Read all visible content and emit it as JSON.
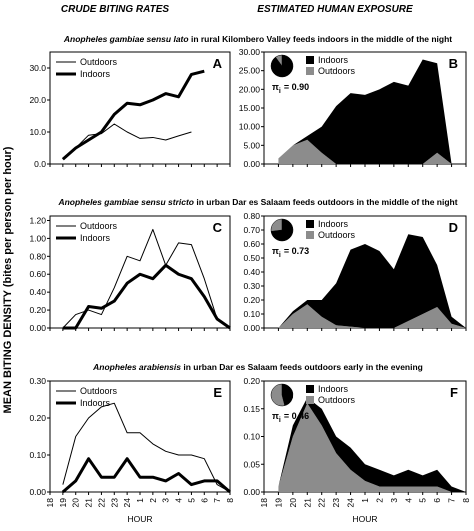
{
  "headers": [
    "CRUDE BITING RATES",
    "ESTIMATED HUMAN EXPOSURE"
  ],
  "y_axis_label": "MEAN BITING DENSITY (bites per person per hour)",
  "row_titles": [
    {
      "species": "Anopheles gambiae sensu lato",
      "rest": "in rural Kilombero Valley feeds indoors in the middle of the night"
    },
    {
      "species": "Anopheles gambiae sensu stricto",
      "rest": "in urban Dar es Salaam feeds outdoors in the middle of the night"
    },
    {
      "species": "Anopheles arabiensis",
      "rest": "in urban Dar es Salaam feeds outdoors early in the evening"
    }
  ],
  "chart_data": [
    {
      "type": "line",
      "letter": "A",
      "ylim": [
        0,
        35
      ],
      "yticks": [
        {
          "value": 0,
          "label": "0.0"
        },
        {
          "value": 10,
          "label": "10.0"
        },
        {
          "value": 20,
          "label": "20.0"
        },
        {
          "value": 30,
          "label": "30.0"
        }
      ],
      "series": [
        {
          "name": "Outdoors",
          "color": "#000000",
          "width": 1,
          "values": [
            null,
            1.5,
            5,
            9,
            9.5,
            12.5,
            10,
            8,
            8.3,
            7.5,
            8.8,
            10,
            null,
            null,
            null
          ]
        },
        {
          "name": "Indoors",
          "color": "#000000",
          "width": 3,
          "values": [
            null,
            1.5,
            5,
            7.5,
            10,
            15.5,
            19,
            18.5,
            20,
            22,
            21,
            28,
            29,
            null,
            null
          ]
        }
      ]
    },
    {
      "type": "stacked_area",
      "letter": "B",
      "ylim": [
        0,
        30
      ],
      "yticks": [
        {
          "value": 0,
          "label": "0.00"
        },
        {
          "value": 5,
          "label": "5.00"
        },
        {
          "value": 10,
          "label": "10.00"
        },
        {
          "value": 15,
          "label": "15.00"
        },
        {
          "value": 20,
          "label": "20.00"
        },
        {
          "value": 25,
          "label": "25.00"
        },
        {
          "value": 30,
          "label": "30.00"
        }
      ],
      "pie": [
        90,
        10
      ],
      "pi_symbol": "π",
      "pi_subscript": "i",
      "pi_text": "= 0.90",
      "series": [
        {
          "name": "Indoors",
          "color": "#000000",
          "values": [
            null,
            0,
            0,
            1,
            7,
            15.5,
            19,
            18.5,
            20,
            22,
            21,
            28,
            24,
            0,
            null
          ]
        },
        {
          "name": "Outdoors",
          "color": "#8c8c8c",
          "values": [
            null,
            1.5,
            5,
            6.5,
            3,
            0,
            0,
            0,
            0,
            0,
            0,
            0,
            3,
            0,
            null
          ]
        }
      ]
    },
    {
      "type": "line",
      "letter": "C",
      "ylim": [
        0,
        1.25
      ],
      "yticks": [
        {
          "value": 0,
          "label": "0.00"
        },
        {
          "value": 0.2,
          "label": "0.20"
        },
        {
          "value": 0.4,
          "label": "0.40"
        },
        {
          "value": 0.6,
          "label": "0.60"
        },
        {
          "value": 0.8,
          "label": "0.80"
        },
        {
          "value": 1,
          "label": "1.00"
        },
        {
          "value": 1.2,
          "label": "1.20"
        }
      ],
      "series": [
        {
          "name": "Outdoors",
          "color": "#000000",
          "width": 1,
          "values": [
            null,
            0,
            0.15,
            0.2,
            0.15,
            0.45,
            0.8,
            0.75,
            1.1,
            0.7,
            0.95,
            0.93,
            0.55,
            0.1,
            0
          ]
        },
        {
          "name": "Indoors",
          "color": "#000000",
          "width": 3,
          "values": [
            null,
            0,
            0,
            0.24,
            0.22,
            0.3,
            0.5,
            0.6,
            0.55,
            0.7,
            0.6,
            0.55,
            0.35,
            0.1,
            0
          ]
        }
      ]
    },
    {
      "type": "stacked_area",
      "letter": "D",
      "ylim": [
        0,
        0.8
      ],
      "yticks": [
        {
          "value": 0,
          "label": "0.00"
        },
        {
          "value": 0.1,
          "label": "0.10"
        },
        {
          "value": 0.2,
          "label": "0.20"
        },
        {
          "value": 0.3,
          "label": "0.30"
        },
        {
          "value": 0.4,
          "label": "0.40"
        },
        {
          "value": 0.5,
          "label": "0.50"
        },
        {
          "value": 0.6,
          "label": "0.60"
        },
        {
          "value": 0.7,
          "label": "0.70"
        },
        {
          "value": 0.8,
          "label": "0.80"
        }
      ],
      "pie": [
        73,
        27
      ],
      "pi_symbol": "π",
      "pi_subscript": "i",
      "pi_text": "= 0.73",
      "series": [
        {
          "name": "Indoors",
          "color": "#000000",
          "values": [
            null,
            0,
            0.02,
            0.03,
            0.12,
            0.3,
            0.55,
            0.6,
            0.55,
            0.42,
            0.62,
            0.55,
            0.3,
            0.05,
            0
          ]
        },
        {
          "name": "Outdoors",
          "color": "#8c8c8c",
          "values": [
            null,
            0,
            0.1,
            0.17,
            0.08,
            0.02,
            0.01,
            0,
            0,
            0,
            0.05,
            0.1,
            0.15,
            0.03,
            0
          ]
        }
      ]
    },
    {
      "type": "line",
      "letter": "E",
      "ylim": [
        0,
        0.3
      ],
      "yticks": [
        {
          "value": 0,
          "label": "0.00"
        },
        {
          "value": 0.1,
          "label": "0.10"
        },
        {
          "value": 0.2,
          "label": "0.20"
        },
        {
          "value": 0.3,
          "label": "0.30"
        }
      ],
      "categories": [
        "18",
        "19",
        "20",
        "21",
        "22",
        "23",
        "24",
        "1",
        "2",
        "3",
        "4",
        "5",
        "6",
        "7",
        "8"
      ],
      "xlabel": "HOUR",
      "series": [
        {
          "name": "Outdoors",
          "color": "#000000",
          "width": 1,
          "values": [
            null,
            0.02,
            0.15,
            0.2,
            0.23,
            0.24,
            0.16,
            0.16,
            0.13,
            0.11,
            0.1,
            0.1,
            0.09,
            0.02,
            0
          ]
        },
        {
          "name": "Indoors",
          "color": "#000000",
          "width": 3,
          "values": [
            null,
            0,
            0.03,
            0.09,
            0.04,
            0.04,
            0.09,
            0.04,
            0.04,
            0.03,
            0.05,
            0.02,
            0.03,
            0.03,
            0
          ]
        }
      ]
    },
    {
      "type": "stacked_area",
      "letter": "F",
      "ylim": [
        0,
        0.2
      ],
      "yticks": [
        {
          "value": 0,
          "label": "0.00"
        },
        {
          "value": 0.05,
          "label": "0.05"
        },
        {
          "value": 0.1,
          "label": "0.10"
        },
        {
          "value": 0.15,
          "label": "0.15"
        },
        {
          "value": 0.2,
          "label": "0.20"
        }
      ],
      "categories": [
        "18",
        "19",
        "20",
        "21",
        "22",
        "23",
        "24",
        "1",
        "2",
        "3",
        "4",
        "5",
        "6",
        "7",
        "8"
      ],
      "xlabel": "HOUR",
      "pie": [
        46,
        54
      ],
      "pi_symbol": "π",
      "pi_subscript": "i",
      "pi_text": "= 0.46",
      "series": [
        {
          "name": "Indoors",
          "color": "#000000",
          "values": [
            null,
            0,
            0.02,
            0.01,
            0.03,
            0.03,
            0.04,
            0.03,
            0.03,
            0.02,
            0.03,
            0.02,
            0.03,
            0.01,
            0
          ]
        },
        {
          "name": "Outdoors",
          "color": "#8c8c8c",
          "values": [
            null,
            0.01,
            0.1,
            0.16,
            0.12,
            0.07,
            0.04,
            0.02,
            0.01,
            0.01,
            0.01,
            0.01,
            0.01,
            0,
            0
          ]
        }
      ]
    }
  ]
}
